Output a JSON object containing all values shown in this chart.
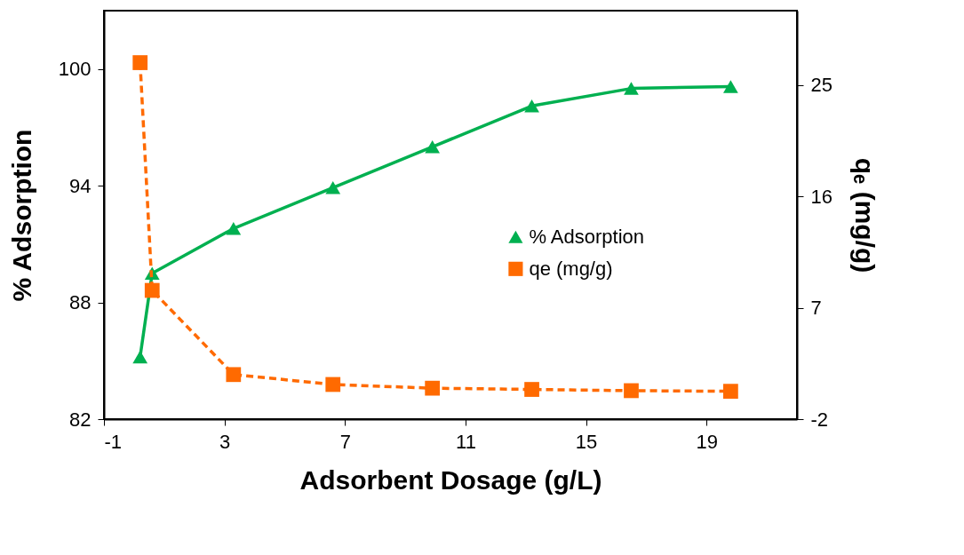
{
  "chart_data": {
    "type": "line",
    "xlabel": "Adsorbent Dosage (g/L)",
    "ylabel": "% Adsorption",
    "y2label": "qₑ (mg/g)",
    "x": [
      0.2,
      0.6,
      3.3,
      6.6,
      9.9,
      13.2,
      16.5,
      19.8
    ],
    "series": [
      {
        "name": "% Adsorption",
        "color": "#00b050",
        "marker": "triangle",
        "line_style": "solid",
        "values": [
          85.2,
          89.5,
          91.8,
          93.9,
          96.0,
          98.1,
          99.0,
          99.1
        ]
      },
      {
        "name": "qe (mg/g)",
        "color": "#ff6a00",
        "marker": "square",
        "line_style": "dashed",
        "axis": "y2",
        "values": [
          26.8,
          8.4,
          1.6,
          0.8,
          0.5,
          0.4,
          0.3,
          0.25
        ]
      }
    ],
    "xlim": [
      -1,
      22
    ],
    "xticks": [
      -1,
      3,
      7,
      11,
      15,
      19
    ],
    "ylim": [
      82,
      103
    ],
    "yticks": [
      82,
      88,
      94,
      100
    ],
    "y2lim": [
      -2,
      31
    ],
    "y2ticks": [
      -2,
      7,
      16,
      25
    ],
    "grid": false,
    "legend": "right"
  }
}
